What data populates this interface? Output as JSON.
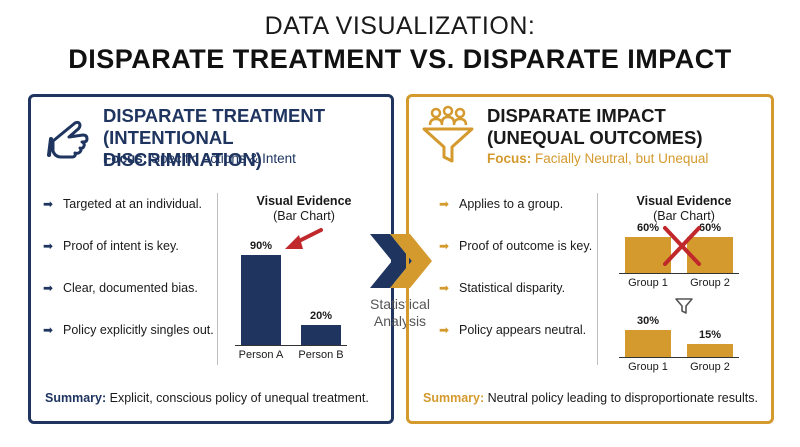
{
  "header": {
    "title_line1": "DATA VISUALIZATION:",
    "title_line2": "DISPARATE TREATMENT VS. DISPARATE IMPACT"
  },
  "left_panel": {
    "title_line1": "DISPARATE TREATMENT",
    "title_line2": "(INTENTIONAL DISCRIMINATION)",
    "focus_label": "Focus:",
    "focus_text": "Specific Actions & Intent",
    "bullets": [
      "Targeted at an individual.",
      "Proof of intent is key.",
      "Clear, documented bias.",
      "Policy explicitly singles out."
    ],
    "visual_title": "Visual Evidence",
    "visual_subtitle": "(Bar Chart)",
    "summary_label": "Summary:",
    "summary_text": "Explicit, conscious policy of unequal treatment.",
    "icon": "pointing-hand-icon",
    "accent_color": "#1f3560"
  },
  "center": {
    "label_line1": "Statistical",
    "label_line2": "Analysis",
    "icon": "double-chevron-right-icon"
  },
  "right_panel": {
    "title_line1": "DISPARATE IMPACT",
    "title_line2": "(UNEQUAL OUTCOMES)",
    "focus_label": "Focus:",
    "focus_text": "Facially Neutral, but Unequal",
    "bullets": [
      "Applies to a group.",
      "Proof of outcome is key.",
      "Statistical disparity.",
      "Policy appears neutral."
    ],
    "visual_title": "Visual Evidence",
    "visual_subtitle": "(Bar Chart)",
    "summary_label": "Summary:",
    "summary_text": "Neutral policy leading to disproportionate results.",
    "icon": "people-funnel-icon",
    "accent_color": "#d49a2e"
  },
  "chart_data": [
    {
      "type": "bar",
      "categories": [
        "Person A",
        "Person B"
      ],
      "values": [
        90,
        20
      ],
      "value_labels": [
        "90%",
        "20%"
      ],
      "ylim": [
        0,
        100
      ],
      "color": "#1f3560",
      "annotation": "red arrow pointing at Person A"
    },
    {
      "type": "bar",
      "categories": [
        "Group 1",
        "Group 2"
      ],
      "values": [
        60,
        60
      ],
      "value_labels": [
        "60%",
        "60%"
      ],
      "ylim": [
        0,
        100
      ],
      "color": "#d49a2e",
      "annotation": "red X over bars"
    },
    {
      "type": "bar",
      "categories": [
        "Group 1",
        "Group 2"
      ],
      "values": [
        30,
        15
      ],
      "value_labels": [
        "30%",
        "15%"
      ],
      "ylim": [
        0,
        100
      ],
      "color": "#d49a2e",
      "annotation": "funnel icon above"
    }
  ]
}
